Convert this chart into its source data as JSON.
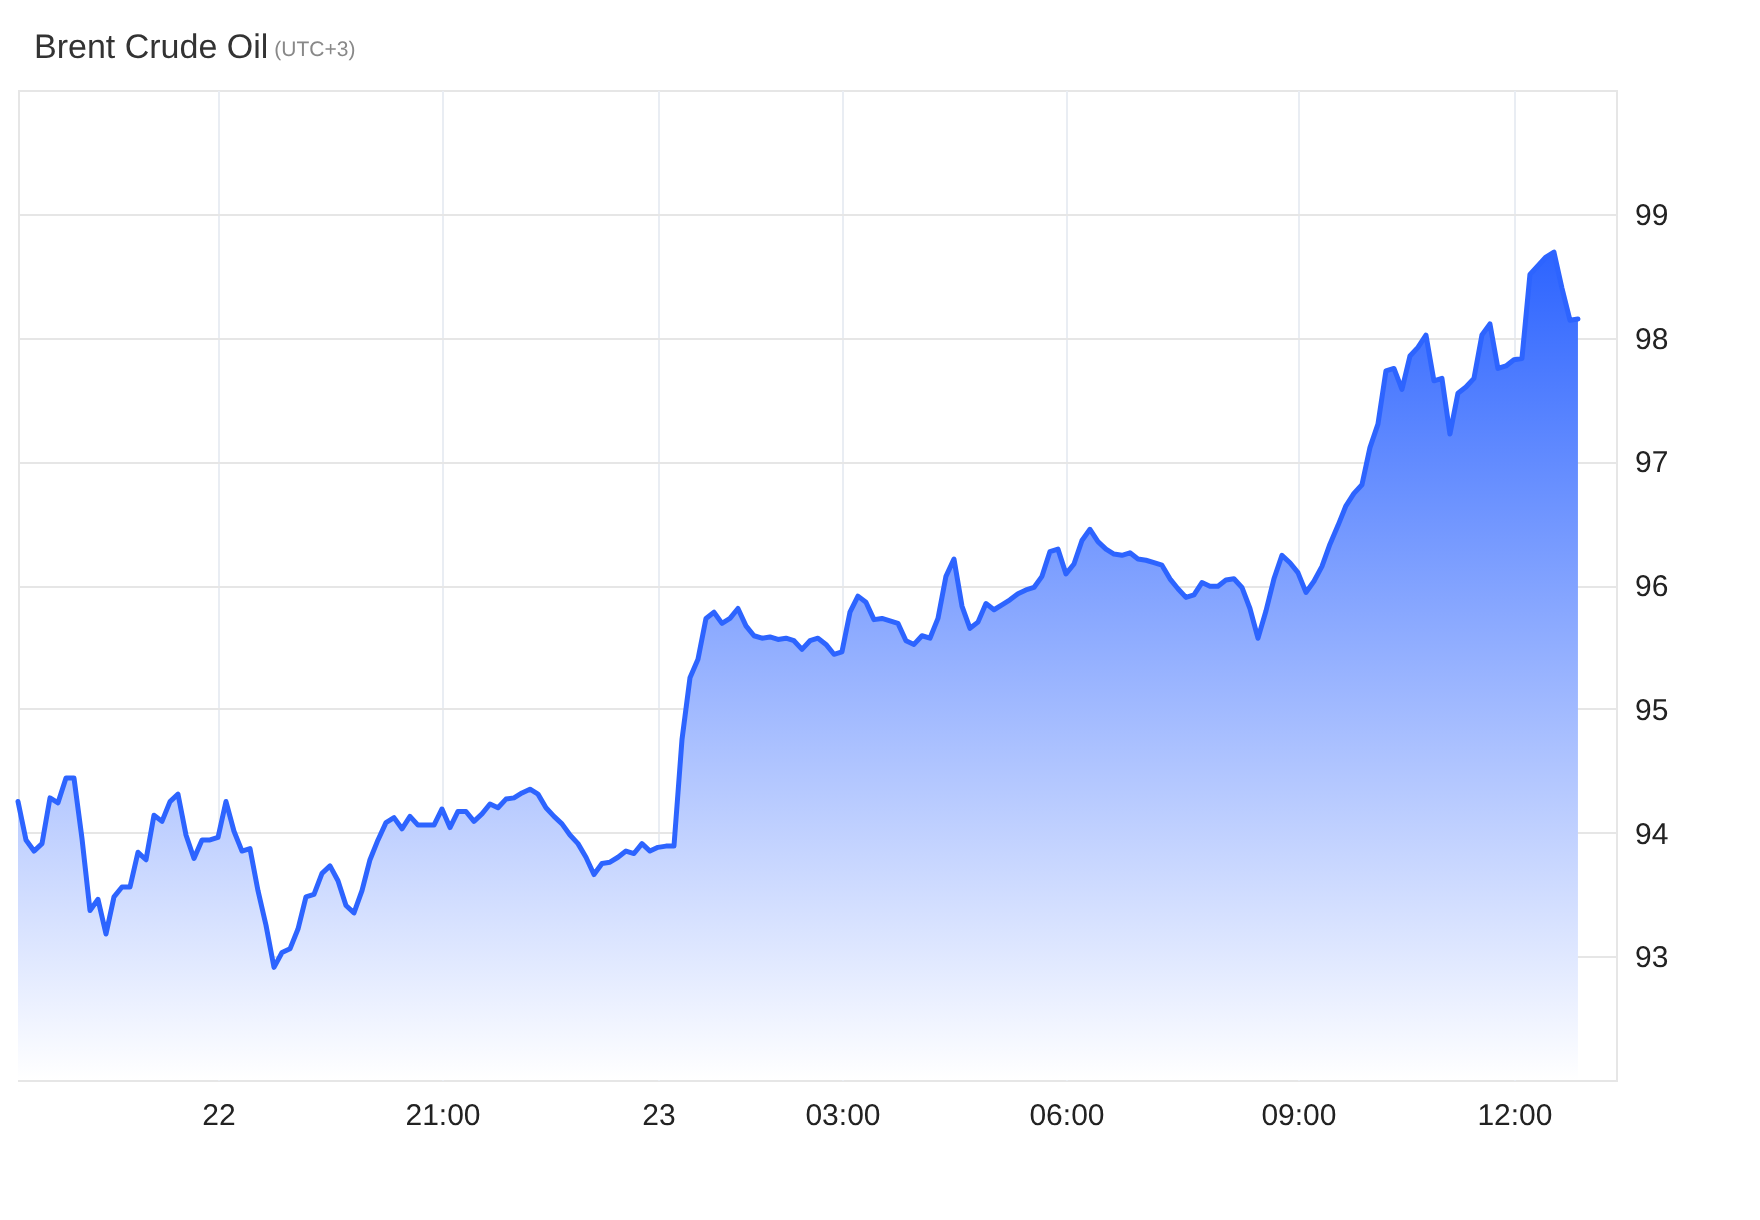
{
  "chart_data": {
    "type": "area",
    "title": "Brent Crude Oil",
    "subtitle": "(UTC+3)",
    "categories": [
      null,
      null,
      null,
      null,
      null,
      null,
      null,
      null,
      null,
      null,
      null,
      null,
      null,
      null,
      null,
      null,
      null,
      null,
      null,
      null,
      null,
      null,
      null,
      null,
      null,
      "22",
      null,
      null,
      null,
      null,
      null,
      null,
      null,
      null,
      null,
      null,
      null,
      null,
      null,
      null,
      null,
      null,
      null,
      null,
      null,
      null,
      null,
      null,
      null,
      null,
      null,
      null,
      null,
      "21:00",
      null,
      null,
      null,
      null,
      null,
      null,
      null,
      null,
      null,
      null,
      null,
      null,
      null,
      null,
      null,
      null,
      null,
      null,
      null,
      null,
      null,
      null,
      null,
      null,
      null,
      null,
      "23",
      null,
      null,
      null,
      null,
      null,
      null,
      null,
      null,
      null,
      null,
      null,
      null,
      null,
      null,
      null,
      null,
      null,
      null,
      null,
      null,
      null,
      null,
      "03:00",
      null,
      null,
      null,
      null,
      null,
      null,
      null,
      null,
      null,
      null,
      null,
      null,
      null,
      null,
      null,
      null,
      null,
      null,
      null,
      null,
      null,
      null,
      null,
      null,
      null,
      null,
      null,
      "06:00",
      null,
      null,
      null,
      null,
      null,
      null,
      null,
      null,
      null,
      null,
      null,
      null,
      null,
      null,
      null,
      null,
      null,
      null,
      null,
      null,
      null,
      null,
      null,
      null,
      null,
      null,
      null,
      null,
      "09:00",
      null,
      null,
      null,
      null,
      null,
      null,
      null,
      null,
      null,
      null,
      null,
      null,
      null,
      null,
      null,
      null,
      null,
      null,
      null,
      null,
      null,
      null,
      null,
      null,
      null,
      null,
      "12:00",
      null,
      null,
      null,
      null,
      null,
      null,
      null,
      null
    ],
    "values": [
      94.25,
      93.94,
      93.85,
      93.91,
      94.28,
      94.24,
      94.44,
      94.44,
      93.95,
      93.37,
      93.46,
      93.18,
      93.48,
      93.56,
      93.56,
      93.84,
      93.78,
      94.14,
      94.09,
      94.25,
      94.31,
      93.98,
      93.79,
      93.94,
      93.94,
      93.96,
      94.25,
      94.01,
      93.85,
      93.87,
      93.53,
      93.25,
      92.91,
      93.03,
      93.06,
      93.22,
      93.48,
      93.5,
      93.67,
      93.73,
      93.61,
      93.41,
      93.35,
      93.53,
      93.78,
      93.94,
      94.08,
      94.12,
      94.03,
      94.13,
      94.06,
      94.06,
      94.06,
      94.19,
      94.04,
      94.17,
      94.17,
      94.09,
      94.15,
      94.23,
      94.2,
      94.27,
      94.28,
      94.32,
      94.35,
      94.31,
      94.2,
      94.13,
      94.07,
      93.98,
      93.91,
      93.8,
      93.66,
      93.75,
      93.76,
      93.8,
      93.85,
      93.83,
      93.91,
      93.85,
      93.88,
      93.89,
      93.89,
      94.75,
      95.25,
      95.4,
      95.73,
      95.78,
      95.69,
      95.73,
      95.81,
      95.67,
      95.59,
      95.57,
      95.58,
      95.56,
      95.57,
      95.55,
      95.48,
      95.55,
      95.57,
      95.52,
      95.44,
      95.46,
      95.78,
      95.91,
      95.86,
      95.72,
      95.73,
      95.71,
      95.69,
      95.55,
      95.52,
      95.59,
      95.57,
      95.73,
      96.07,
      96.21,
      95.83,
      95.65,
      95.7,
      95.85,
      95.8,
      95.84,
      95.88,
      95.93,
      95.96,
      95.98,
      96.07,
      96.27,
      96.29,
      96.09,
      96.17,
      96.36,
      96.45,
      96.35,
      96.29,
      96.25,
      96.24,
      96.26,
      96.21,
      96.2,
      96.18,
      96.16,
      96.05,
      95.97,
      95.9,
      95.92,
      96.02,
      95.99,
      95.99,
      96.04,
      96.05,
      95.98,
      95.81,
      95.57,
      95.79,
      96.05,
      96.24,
      96.18,
      96.1,
      95.94,
      96.03,
      96.15,
      96.33,
      96.48,
      96.64,
      96.74,
      96.81,
      97.11,
      97.3,
      97.73,
      97.75,
      97.58,
      97.85,
      97.92,
      98.02,
      97.65,
      97.67,
      97.22,
      97.55,
      97.6,
      97.67,
      98.02,
      98.11,
      97.75,
      97.77,
      97.82,
      97.83,
      98.51,
      98.58,
      98.65,
      98.69,
      98.4,
      98.14,
      98.15
    ],
    "color": "#2d64ff",
    "ylim": [
      92,
      100
    ],
    "yticks": [
      93,
      94,
      95,
      96,
      97,
      98,
      99
    ],
    "grid": true
  }
}
